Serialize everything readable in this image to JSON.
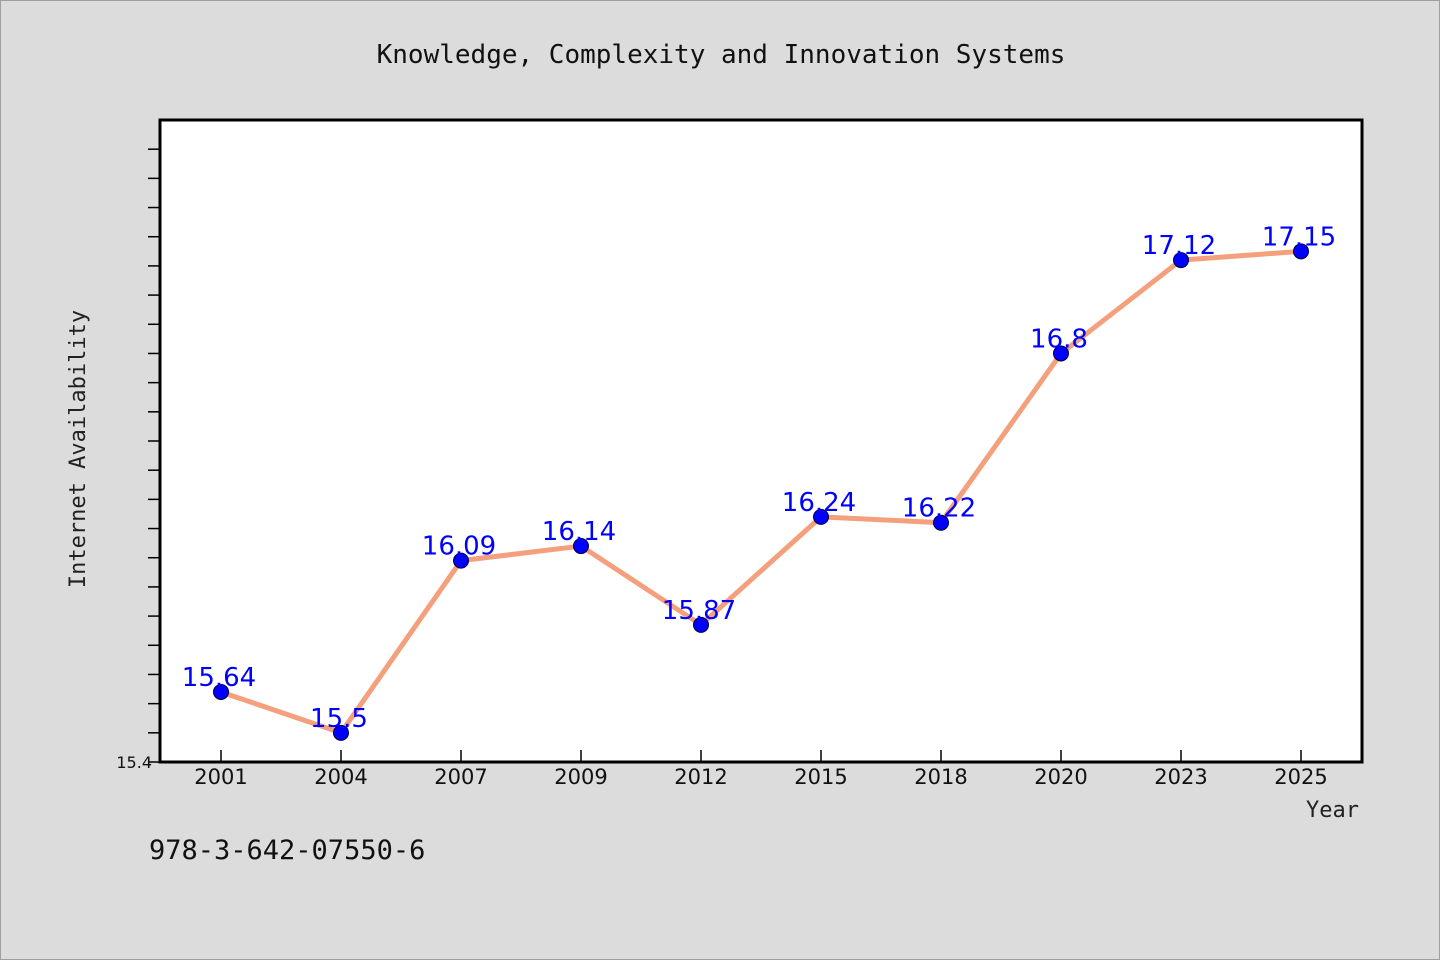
{
  "chart_data": {
    "type": "line",
    "title": "Knowledge, Complexity and Innovation Systems",
    "xlabel": "Year",
    "ylabel": "Internet Availability",
    "categories": [
      "2001",
      "2004",
      "2007",
      "2009",
      "2012",
      "2015",
      "2018",
      "2020",
      "2023",
      "2025"
    ],
    "series": [
      {
        "values": [
          15.64,
          15.5,
          16.09,
          16.14,
          15.87,
          16.24,
          16.22,
          16.8,
          17.12,
          17.15
        ],
        "labels": [
          "15.64",
          "15.5",
          "16.09",
          "16.14",
          "15.87",
          "16.24",
          "16.22",
          "16.8",
          "17.12",
          "17.15"
        ]
      }
    ],
    "ylim": [
      15.4,
      17.6
    ],
    "y_tick_labels": [
      "15.4"
    ],
    "grid": false,
    "colors": {
      "line": "#f4a07c",
      "marker": "#0000ff",
      "label": "#0000ff",
      "plot_bg": "#ffffff",
      "figure_bg": "#dcdcdc"
    }
  },
  "footer": {
    "isbn": "978-3-642-07550-6"
  }
}
